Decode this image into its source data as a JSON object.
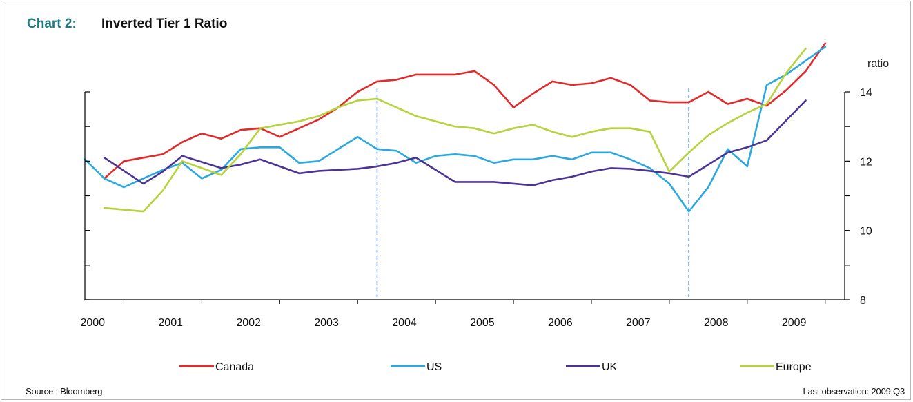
{
  "header": {
    "chart_label": "Chart 2:",
    "title": "Inverted Tier 1 Ratio"
  },
  "footer": {
    "source": "Source : Bloomberg",
    "last_observation": "Last observation: 2009 Q3"
  },
  "chart_data": {
    "type": "line",
    "title": "Inverted Tier 1 Ratio",
    "ylabel": "ratio",
    "yaxis_side": "right",
    "y_inverted": true,
    "ylim": [
      14,
      8
    ],
    "yticks": [
      14,
      12,
      10,
      8
    ],
    "xlim": [
      2000,
      2009.75
    ],
    "xticks": [
      "2000",
      "2001",
      "2002",
      "2003",
      "2004",
      "2005",
      "2006",
      "2007",
      "2008",
      "2009"
    ],
    "reference_lines": [
      2003.75,
      2007.75
    ],
    "legend_position": "bottom",
    "colors": {
      "Canada": "#e32a2a",
      "US": "#2aa9e0",
      "UK": "#4b3493",
      "Europe": "#b5d33a",
      "reference": "#4a7fc8"
    },
    "series": [
      {
        "name": "Canada",
        "x": [
          2000.25,
          2000.5,
          2000.75,
          2001.0,
          2001.25,
          2001.5,
          2001.75,
          2002.0,
          2002.25,
          2002.5,
          2002.75,
          2003.0,
          2003.25,
          2003.5,
          2003.75,
          2004.0,
          2004.25,
          2004.5,
          2004.75,
          2005.0,
          2005.25,
          2005.5,
          2005.75,
          2006.0,
          2006.25,
          2006.5,
          2006.75,
          2007.0,
          2007.25,
          2007.5,
          2007.75,
          2008.0,
          2008.25,
          2008.5,
          2008.75,
          2009.0,
          2009.25,
          2009.5
        ],
        "values": [
          11.5,
          12.0,
          12.1,
          12.2,
          12.55,
          12.8,
          12.65,
          12.9,
          12.95,
          12.7,
          12.95,
          13.2,
          13.55,
          14.0,
          14.3,
          14.35,
          14.5,
          14.5,
          14.5,
          14.6,
          14.2,
          13.55,
          13.95,
          14.3,
          14.2,
          14.25,
          14.4,
          14.2,
          13.75,
          13.7,
          13.7,
          14.0,
          13.65,
          13.8,
          13.6,
          14.05,
          14.6,
          15.4
        ]
      },
      {
        "name": "US",
        "x": [
          2000.0,
          2000.25,
          2000.5,
          2000.75,
          2001.0,
          2001.25,
          2001.5,
          2001.75,
          2002.0,
          2002.25,
          2002.5,
          2002.75,
          2003.0,
          2003.25,
          2003.5,
          2003.75,
          2004.0,
          2004.25,
          2004.5,
          2004.75,
          2005.0,
          2005.25,
          2005.5,
          2005.75,
          2006.0,
          2006.25,
          2006.5,
          2006.75,
          2007.0,
          2007.25,
          2007.5,
          2007.75,
          2008.0,
          2008.25,
          2008.5,
          2008.75,
          2009.0,
          2009.25,
          2009.5
        ],
        "values": [
          12.05,
          11.5,
          11.25,
          11.5,
          11.75,
          11.95,
          11.5,
          11.75,
          12.35,
          12.4,
          12.4,
          11.95,
          12.0,
          12.35,
          12.7,
          12.35,
          12.3,
          11.95,
          12.15,
          12.2,
          12.15,
          11.95,
          12.05,
          12.05,
          12.15,
          12.05,
          12.25,
          12.25,
          12.05,
          11.8,
          11.35,
          10.55,
          11.25,
          12.35,
          11.85,
          14.2,
          14.5,
          14.9,
          15.3
        ]
      },
      {
        "name": "UK",
        "x": [
          2000.25,
          2000.75,
          2001.0,
          2001.25,
          2001.75,
          2002.0,
          2002.25,
          2002.75,
          2003.0,
          2003.25,
          2003.5,
          2003.75,
          2004.0,
          2004.25,
          2004.5,
          2004.75,
          2005.0,
          2005.25,
          2005.5,
          2005.75,
          2006.0,
          2006.25,
          2006.5,
          2006.75,
          2007.0,
          2007.25,
          2007.5,
          2007.75,
          2008.0,
          2008.25,
          2008.5,
          2008.75,
          2009.25
        ],
        "values": [
          12.1,
          11.35,
          11.7,
          12.15,
          11.8,
          11.9,
          12.05,
          11.65,
          11.72,
          11.75,
          11.78,
          11.85,
          11.95,
          12.1,
          11.75,
          11.4,
          11.4,
          11.4,
          11.35,
          11.3,
          11.45,
          11.55,
          11.7,
          11.8,
          11.78,
          11.72,
          11.65,
          11.55,
          11.9,
          12.25,
          12.4,
          12.6,
          13.75
        ]
      },
      {
        "name": "Europe",
        "x": [
          2000.25,
          2000.75,
          2001.0,
          2001.25,
          2001.5,
          2001.75,
          2002.0,
          2002.25,
          2002.5,
          2002.75,
          2003.0,
          2003.25,
          2003.5,
          2003.75,
          2004.0,
          2004.25,
          2004.5,
          2004.75,
          2005.0,
          2005.25,
          2005.5,
          2005.75,
          2006.0,
          2006.25,
          2006.5,
          2006.75,
          2007.0,
          2007.25,
          2007.5,
          2007.75,
          2008.0,
          2008.25,
          2008.5,
          2008.75,
          2009.0,
          2009.25
        ],
        "values": [
          10.65,
          10.55,
          11.15,
          12.0,
          11.8,
          11.6,
          12.2,
          12.95,
          13.05,
          13.15,
          13.3,
          13.55,
          13.75,
          13.8,
          13.55,
          13.3,
          13.15,
          13.0,
          12.95,
          12.8,
          12.95,
          13.05,
          12.85,
          12.7,
          12.85,
          12.95,
          12.95,
          12.85,
          11.7,
          12.25,
          12.75,
          13.1,
          13.4,
          13.65,
          14.55,
          15.25
        ]
      }
    ]
  }
}
